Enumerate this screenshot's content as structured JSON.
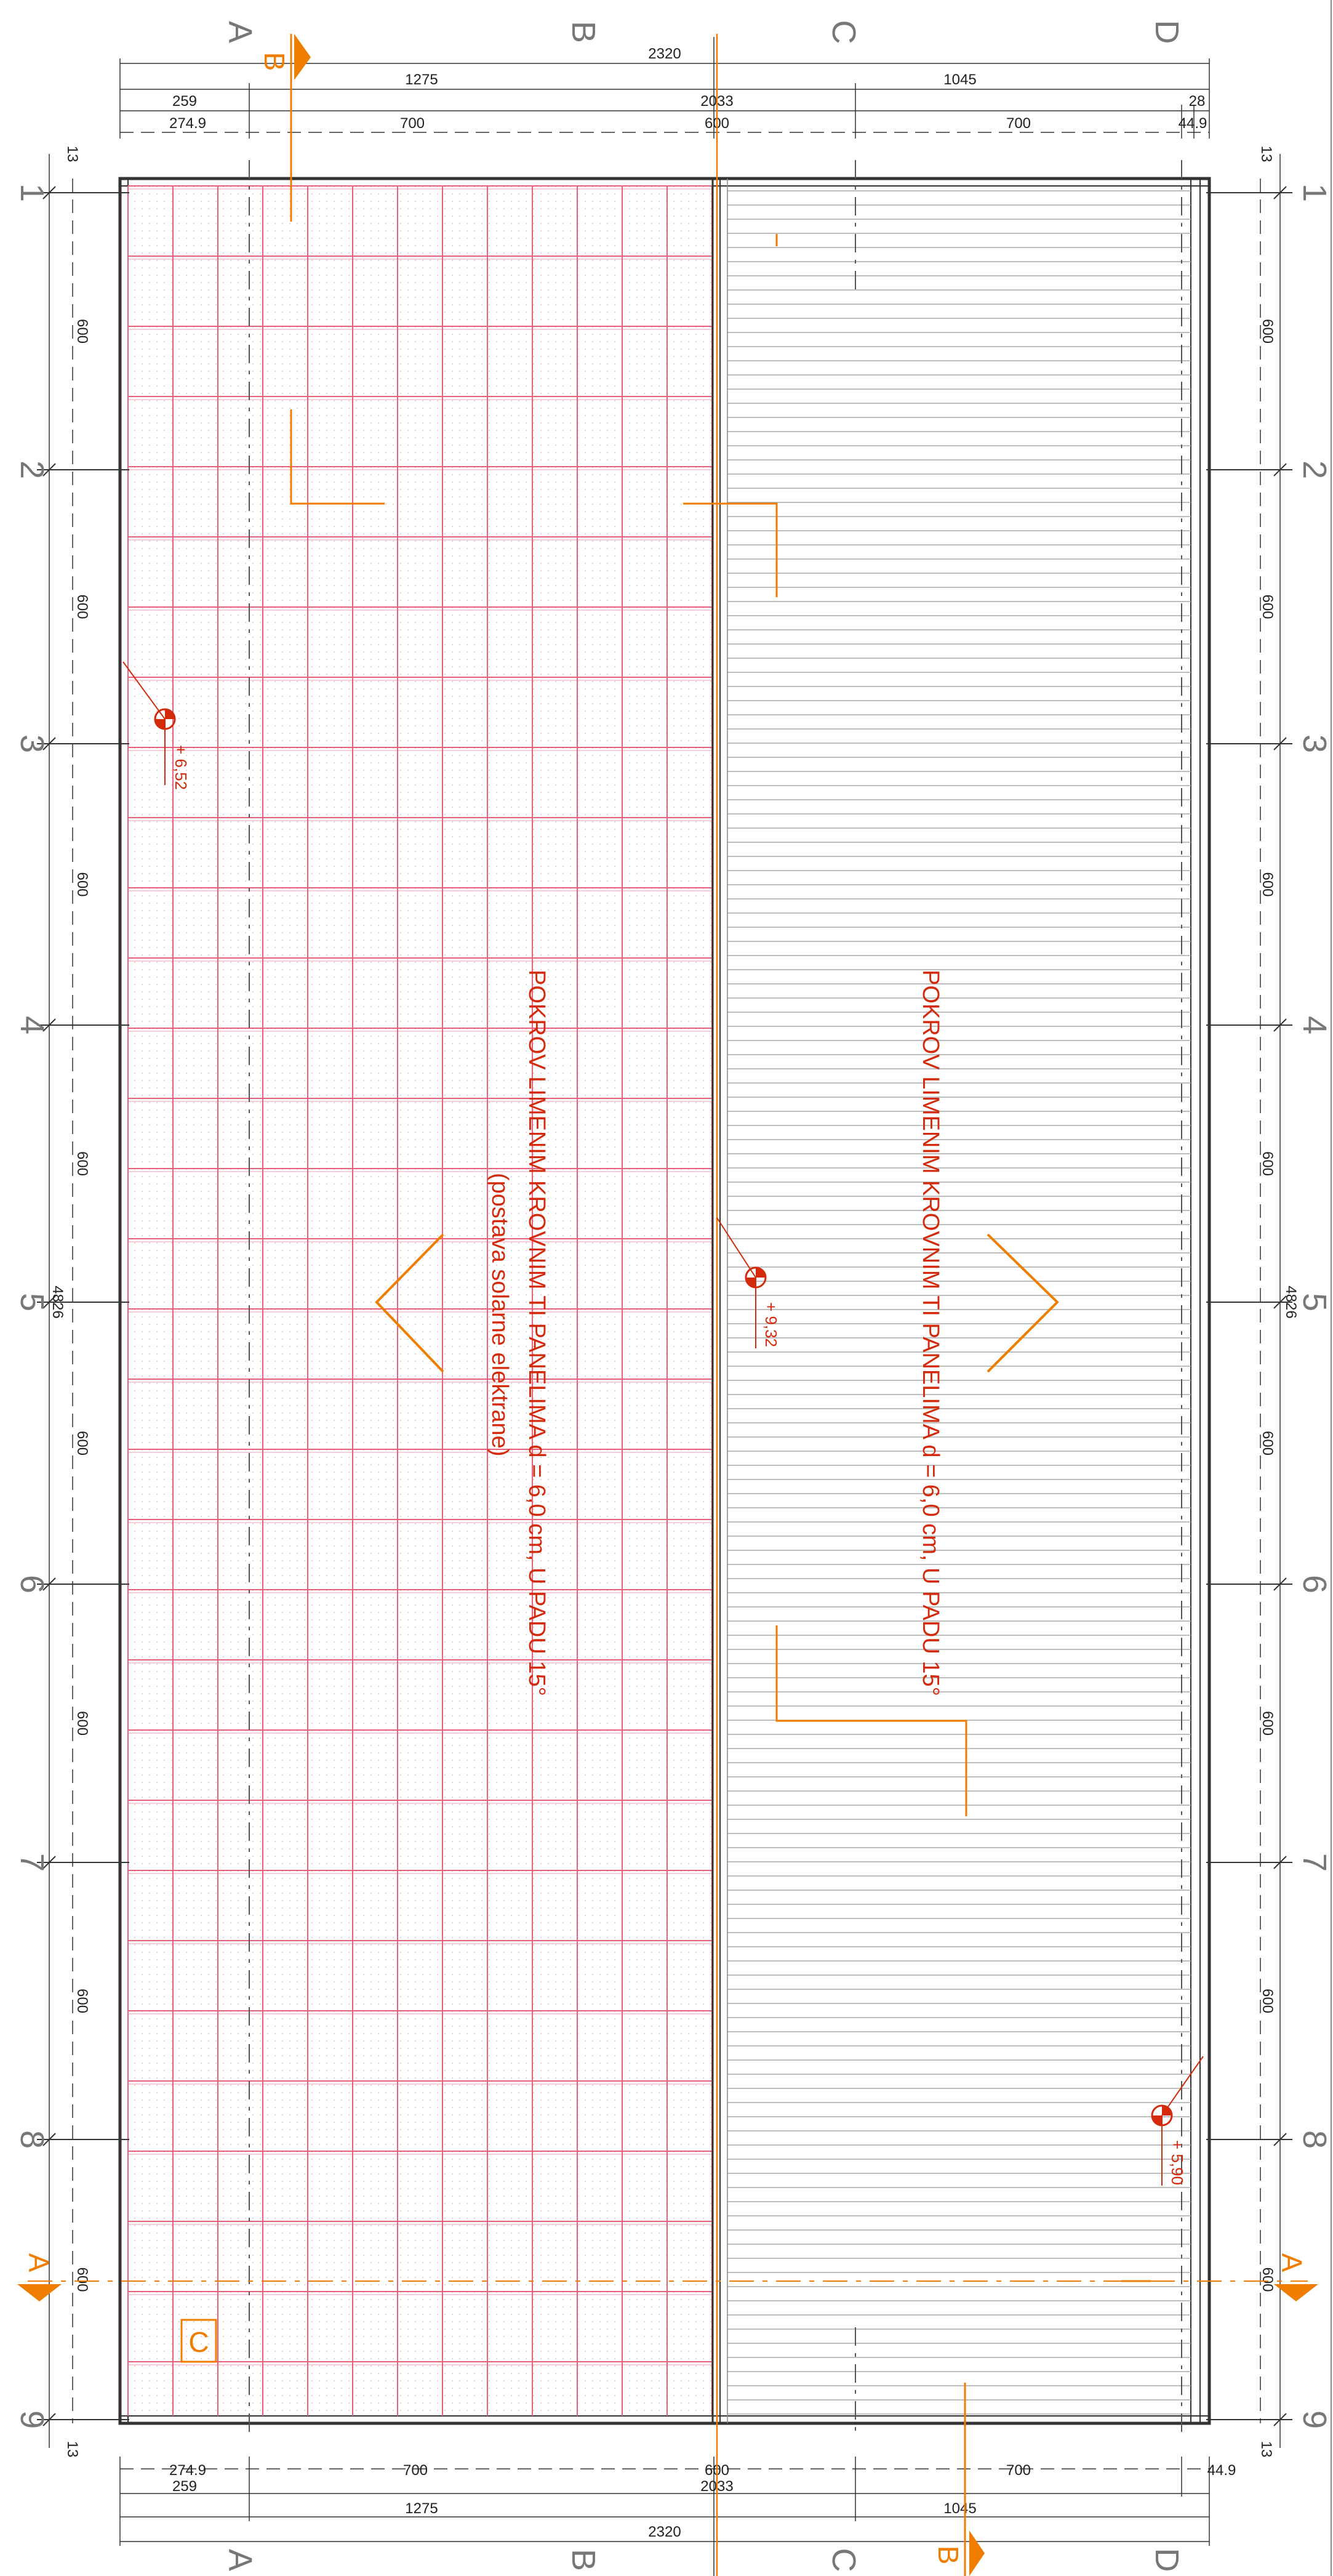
{
  "dimensions": {
    "top_total": "2320",
    "top_seg1": "1275",
    "top_seg2": "1045",
    "top_seg3": "259",
    "top_seg4": "2033",
    "top_seg5": "28",
    "top_seg6": "274.9",
    "top_seg7": "700",
    "top_seg8": "600",
    "top_seg9": "700",
    "top_seg10": "44.9",
    "bottom_seg1": "274.9",
    "bottom_seg2": "700",
    "bottom_seg3": "600",
    "bottom_seg4": "700",
    "bottom_seg5": "44.9",
    "bottom_seg6": "259",
    "bottom_seg7": "2033",
    "bottom_seg8": "1275",
    "bottom_seg9": "1045",
    "bottom_total": "2320",
    "side_end": "13",
    "side_bay": "600",
    "side_total": "4826"
  },
  "grid_axes": {
    "columns": [
      "A",
      "B",
      "C",
      "D"
    ],
    "rows": [
      "1",
      "2",
      "3",
      "4",
      "5",
      "6",
      "7",
      "8",
      "9"
    ]
  },
  "section_marks": {
    "a": "A",
    "b": "B",
    "detail": "C"
  },
  "roof_notes": {
    "left_line1": "POKROV LIMENIM KROVNIM  TI PANELIMA d = 6,0 cm, U PADU 15°",
    "left_line2": "(postava solarne elektrane)",
    "right_line1": "POKROV LIMENIM KROVNIM  TI PANELIMA d = 6,0 cm, U PADU 15°"
  },
  "elevations": {
    "e1": "+ 6,52",
    "e2": "+ 9,32",
    "e3": "+ 5,90"
  },
  "colors": {
    "line": "#333333",
    "red": "#d42a0c",
    "orange": "#ef7d00",
    "panel_grid": "#e8607a",
    "grid_label": "#777777"
  }
}
